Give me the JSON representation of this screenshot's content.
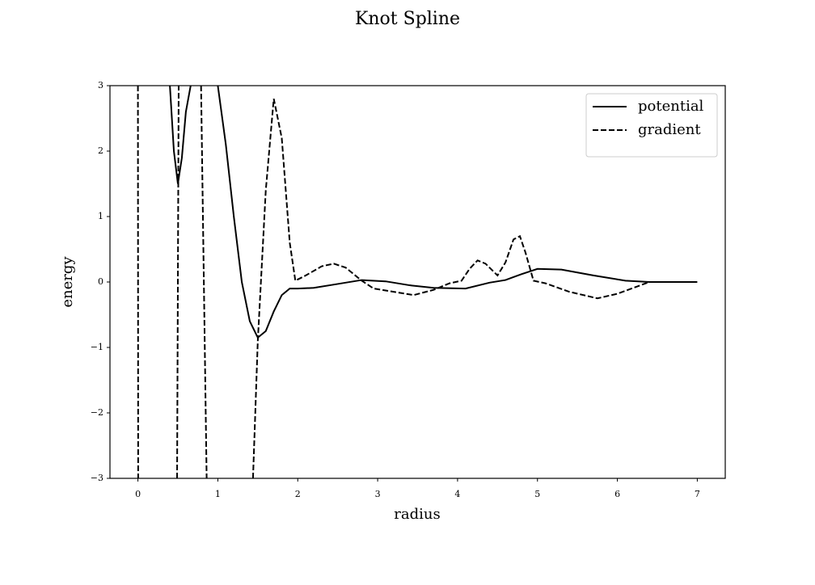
{
  "chart_data": {
    "type": "line",
    "title": "Knot Spline",
    "x_label": "radius",
    "y_label": "energy",
    "xlim": [
      -0.35,
      7.35
    ],
    "ylim": [
      -3,
      3
    ],
    "xticks": [
      0,
      1,
      2,
      3,
      4,
      5,
      6,
      7
    ],
    "yticks": [
      {
        "value": -3,
        "label": "−3"
      },
      {
        "value": -2,
        "label": "−2"
      },
      {
        "value": -1,
        "label": "−1"
      },
      0,
      1,
      2,
      3
    ],
    "legend": "upper right",
    "grid": false,
    "series": [
      {
        "name": "potential",
        "color": "#000000",
        "dash": "solid",
        "x": [
          0.4,
          0.45,
          0.5,
          0.55,
          0.6,
          0.66,
          0.8,
          1.0,
          1.1,
          1.2,
          1.3,
          1.4,
          1.5,
          1.6,
          1.7,
          1.8,
          1.9,
          2.0,
          2.2,
          2.5,
          2.8,
          3.1,
          3.4,
          3.7,
          4.1,
          4.4,
          4.6,
          4.8,
          5.0,
          5.3,
          5.7,
          6.1,
          6.4,
          7.0
        ],
        "values": [
          3,
          2.0,
          1.5,
          1.9,
          2.6,
          3,
          null,
          3,
          2.1,
          1.0,
          0.0,
          -0.6,
          -0.85,
          -0.75,
          -0.45,
          -0.2,
          -0.1,
          -0.1,
          -0.09,
          -0.03,
          0.03,
          0.01,
          -0.05,
          -0.09,
          -0.1,
          -0.01,
          0.03,
          0.12,
          0.2,
          0.19,
          0.1,
          0.02,
          0,
          0
        ]
      },
      {
        "name": "gradient",
        "color": "#000000",
        "dash": "dashed",
        "x": [
          0,
          0.003,
          0.25,
          0.49,
          0.51,
          0.65,
          0.79,
          0.86,
          1.15,
          1.44,
          1.5,
          1.6,
          1.7,
          1.8,
          1.9,
          1.97,
          2.1,
          2.3,
          2.45,
          2.6,
          2.8,
          2.95,
          3.2,
          3.45,
          3.7,
          3.9,
          4.05,
          4.15,
          4.25,
          4.35,
          4.5,
          4.6,
          4.7,
          4.78,
          4.85,
          4.95,
          5.1,
          5.4,
          5.75,
          6.0,
          6.4,
          6.7,
          7.0
        ],
        "values": [
          3,
          -3,
          null,
          -3,
          3,
          null,
          3,
          -3,
          null,
          -3,
          -0.9,
          1.4,
          2.8,
          2.2,
          0.6,
          0.02,
          0.1,
          0.24,
          0.28,
          0.22,
          0.02,
          -0.1,
          -0.15,
          -0.2,
          -0.12,
          -0.02,
          0.02,
          0.2,
          0.33,
          0.28,
          0.1,
          0.3,
          0.65,
          0.7,
          0.45,
          0.02,
          -0.02,
          -0.15,
          -0.25,
          -0.18,
          0,
          0,
          0
        ]
      }
    ]
  }
}
